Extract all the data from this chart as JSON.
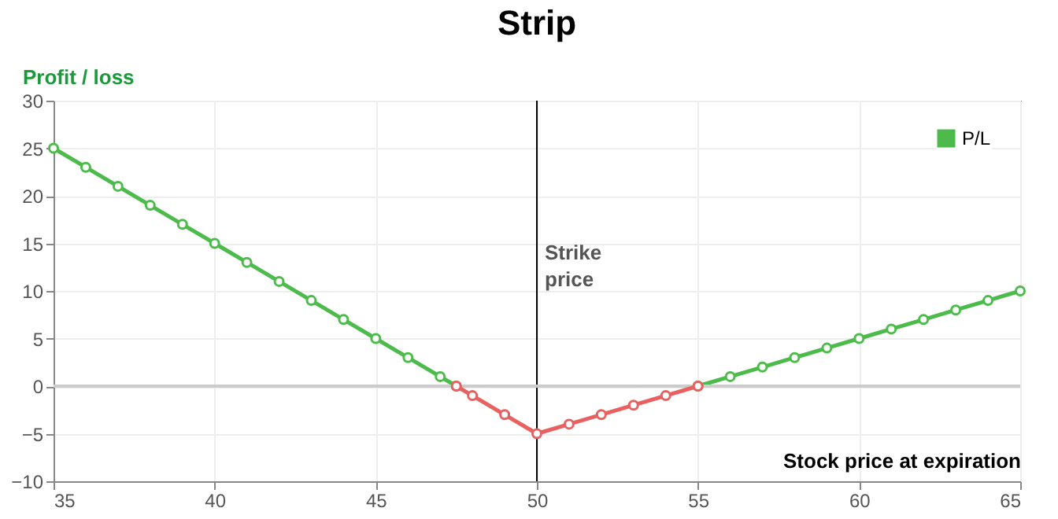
{
  "chart_data": {
    "type": "line",
    "title": "Strip",
    "ylabel": "Profit / loss",
    "xlabel": "Stock price at expiration",
    "x": [
      35,
      36,
      37,
      38,
      39,
      40,
      41,
      42,
      43,
      44,
      45,
      46,
      47,
      47.5,
      48,
      49,
      50,
      51,
      52,
      53,
      54,
      55,
      56,
      57,
      58,
      59,
      60,
      61,
      62,
      63,
      64,
      65
    ],
    "series": [
      {
        "name": "P/L",
        "color": "#4cbb4c",
        "values": [
          25,
          23,
          21,
          19,
          17,
          15,
          13,
          11,
          9,
          7,
          5,
          3,
          1,
          0,
          null,
          null,
          null,
          null,
          null,
          null,
          null,
          0,
          1,
          2,
          3,
          4,
          5,
          6,
          7,
          8,
          9,
          10
        ]
      },
      {
        "color": "#e86060",
        "values": [
          null,
          null,
          null,
          null,
          null,
          null,
          null,
          null,
          null,
          null,
          null,
          null,
          null,
          0,
          -1,
          -3,
          -5,
          -4,
          -3,
          -2,
          -1,
          0,
          null,
          null,
          null,
          null,
          null,
          null,
          null,
          null,
          null,
          null
        ]
      }
    ],
    "xlim": [
      35,
      65
    ],
    "xticks": [
      35,
      40,
      45,
      50,
      55,
      60,
      65
    ],
    "ylim": [
      -10,
      30
    ],
    "yticks": [
      -10,
      -5,
      0,
      5,
      10,
      15,
      20,
      25,
      30
    ],
    "ref_lines": [
      {
        "axis": "y",
        "value": 0,
        "color": "#cccccc"
      },
      {
        "axis": "x",
        "value": 50,
        "label": "Strike price",
        "color": "#000000"
      }
    ],
    "grid": true,
    "legend": "top right",
    "marker": "circle",
    "line_style": "solid"
  }
}
